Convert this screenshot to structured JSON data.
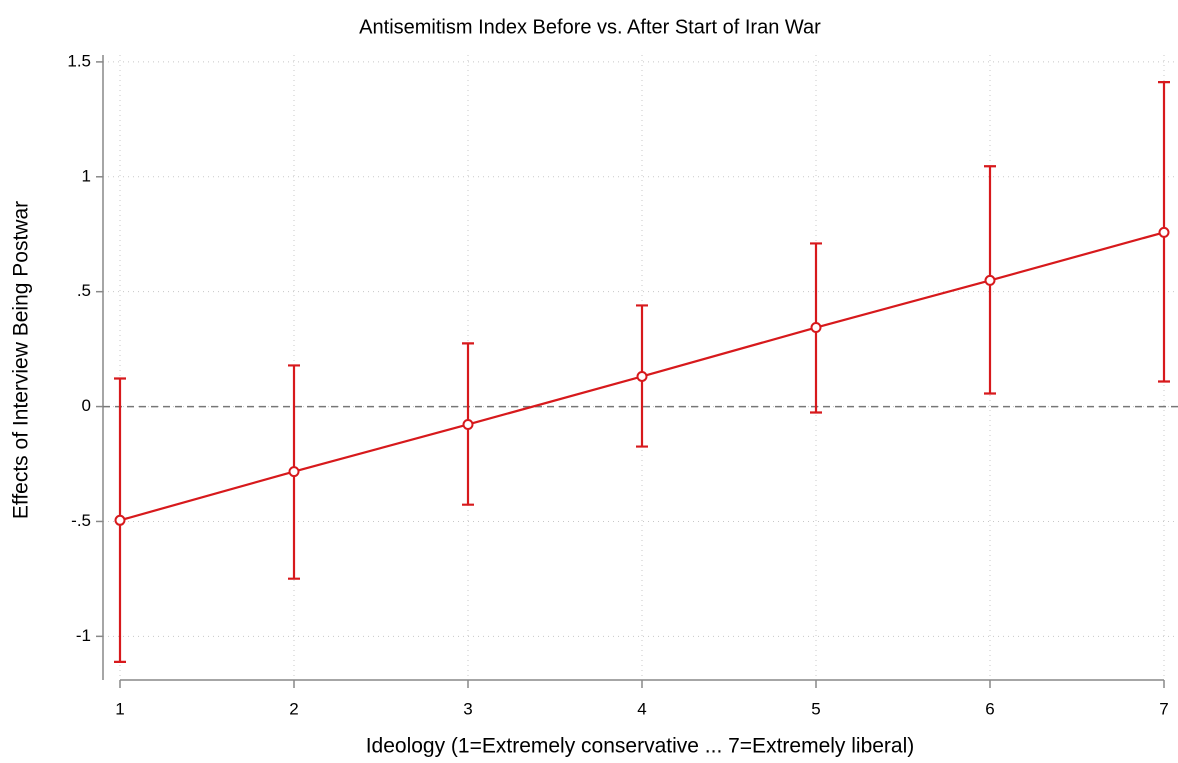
{
  "chart_data": {
    "type": "line",
    "title": "Antisemitism Index Before vs. After Start of Iran War",
    "x_label": "Ideology (1=Extremely conservative ... 7=Extremely liberal)",
    "y_label": "Effects of Interview Being Postwar",
    "x": [
      1,
      2,
      3,
      4,
      5,
      6,
      7
    ],
    "series": [
      {
        "color": "#d7191c",
        "values": [
          -0.495,
          -0.283,
          -0.078,
          0.131,
          0.344,
          0.549,
          0.758
        ],
        "lower": [
          -1.111,
          -0.749,
          -0.427,
          -0.174,
          -0.026,
          0.057,
          0.109
        ],
        "upper": [
          0.122,
          0.179,
          0.275,
          0.44,
          0.71,
          1.046,
          1.412
        ]
      }
    ],
    "xlim": [
      1,
      7
    ],
    "xticks": [
      1,
      2,
      3,
      4,
      5,
      6,
      7
    ],
    "ylim": [
      -1.19,
      1.53
    ],
    "yticks": [
      -1,
      {
        "value": -0.5,
        "label": "-.5"
      },
      0,
      {
        "value": 0.5,
        "label": ".5"
      },
      1,
      1.5
    ],
    "reference_line": 0,
    "grid": true
  }
}
